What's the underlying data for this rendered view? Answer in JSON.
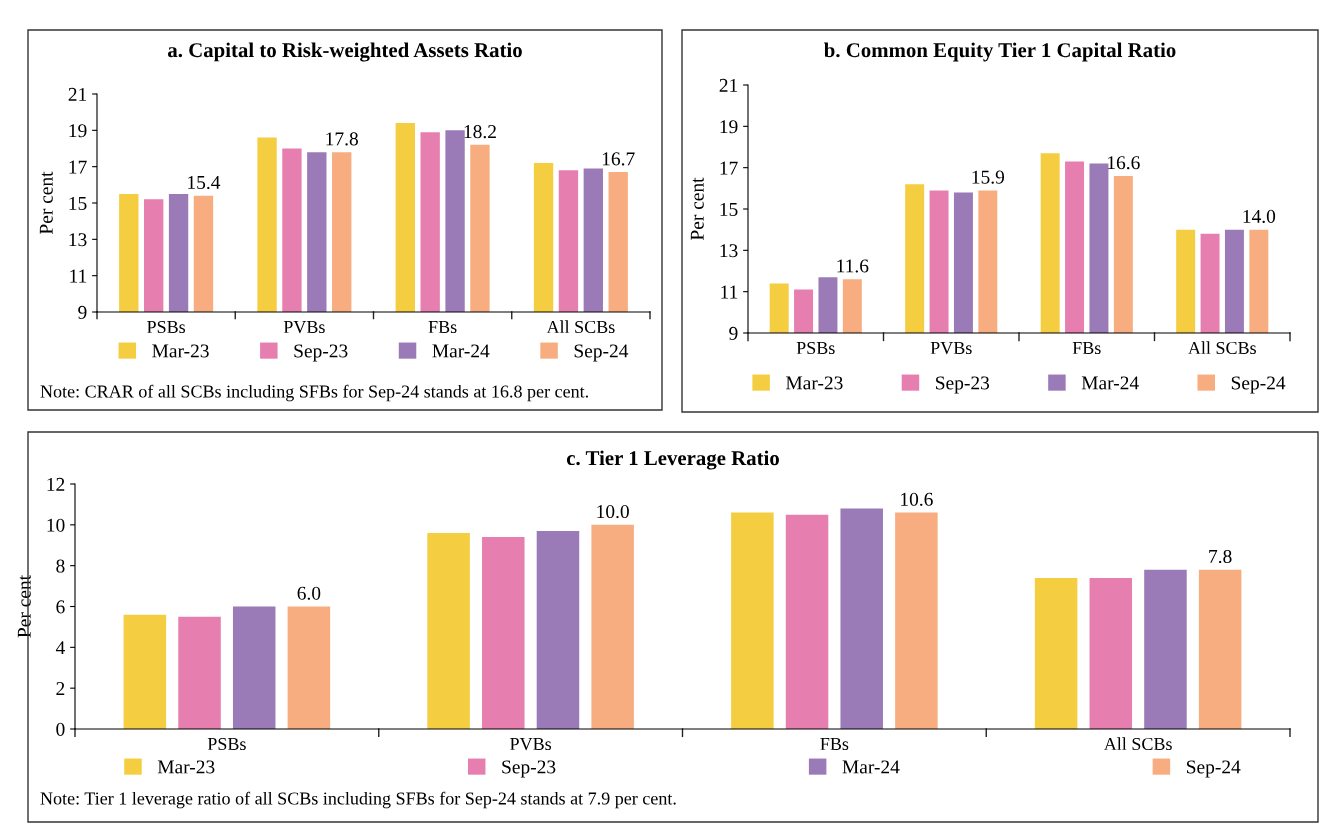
{
  "chart_data": [
    {
      "type": "bar",
      "title": "a. Capital to Risk-weighted Assets Ratio",
      "ylabel": "Per cent",
      "categories": [
        "PSBs",
        "PVBs",
        "FBs",
        "All SCBs"
      ],
      "ylim": [
        9,
        21
      ],
      "yticks": [
        9,
        11,
        13,
        15,
        17,
        19,
        21
      ],
      "grid": false,
      "legend": "bottom",
      "series": [
        {
          "name": "Mar-23",
          "color": "#f5cd40",
          "values": [
            15.5,
            18.6,
            19.4,
            17.2
          ]
        },
        {
          "name": "Sep-23",
          "color": "#e77eb0",
          "values": [
            15.2,
            18.0,
            18.9,
            16.8
          ]
        },
        {
          "name": "Mar-24",
          "color": "#9a7bb8",
          "values": [
            15.5,
            17.8,
            19.0,
            16.9
          ]
        },
        {
          "name": "Sep-24",
          "color": "#f7ad80",
          "values": [
            15.4,
            17.8,
            18.2,
            16.7
          ],
          "value_labels": [
            "15.4",
            "17.8",
            "18.2",
            "16.7"
          ]
        }
      ],
      "annotations": [
        "Note: CRAR of all SCBs including SFBs for Sep-24 stands at 16.8 per cent."
      ]
    },
    {
      "type": "bar",
      "title": "b. Common Equity Tier 1 Capital Ratio",
      "ylabel": "Per cent",
      "categories": [
        "PSBs",
        "PVBs",
        "FBs",
        "All SCBs"
      ],
      "ylim": [
        9,
        21
      ],
      "yticks": [
        9,
        11,
        13,
        15,
        17,
        19,
        21
      ],
      "grid": false,
      "legend": "bottom",
      "series": [
        {
          "name": "Mar-23",
          "color": "#f5cd40",
          "values": [
            11.4,
            16.2,
            17.7,
            14.0
          ]
        },
        {
          "name": "Sep-23",
          "color": "#e77eb0",
          "values": [
            11.1,
            15.9,
            17.3,
            13.8
          ]
        },
        {
          "name": "Mar-24",
          "color": "#9a7bb8",
          "values": [
            11.7,
            15.8,
            17.2,
            14.0
          ]
        },
        {
          "name": "Sep-24",
          "color": "#f7ad80",
          "values": [
            11.6,
            15.9,
            16.6,
            14.0
          ],
          "value_labels": [
            "11.6",
            "15.9",
            "16.6",
            "14.0"
          ]
        }
      ]
    },
    {
      "type": "bar",
      "title": "c. Tier 1 Leverage Ratio",
      "ylabel": "Per cent",
      "categories": [
        "PSBs",
        "PVBs",
        "FBs",
        "All SCBs"
      ],
      "ylim": [
        0,
        12
      ],
      "yticks": [
        0,
        2,
        4,
        6,
        8,
        10,
        12
      ],
      "grid": false,
      "legend": "bottom",
      "series": [
        {
          "name": "Mar-23",
          "color": "#f5cd40",
          "values": [
            5.6,
            9.6,
            10.6,
            7.4
          ]
        },
        {
          "name": "Sep-23",
          "color": "#e77eb0",
          "values": [
            5.5,
            9.4,
            10.5,
            7.4
          ]
        },
        {
          "name": "Mar-24",
          "color": "#9a7bb8",
          "values": [
            6.0,
            9.7,
            10.8,
            7.8
          ]
        },
        {
          "name": "Sep-24",
          "color": "#f7ad80",
          "values": [
            6.0,
            10.0,
            10.6,
            7.8
          ],
          "value_labels": [
            "6.0",
            "10.0",
            "10.6",
            "7.8"
          ]
        }
      ],
      "annotations": [
        "Note: Tier 1 leverage ratio of all SCBs including SFBs for Sep-24 stands at 7.9 per cent."
      ]
    }
  ]
}
